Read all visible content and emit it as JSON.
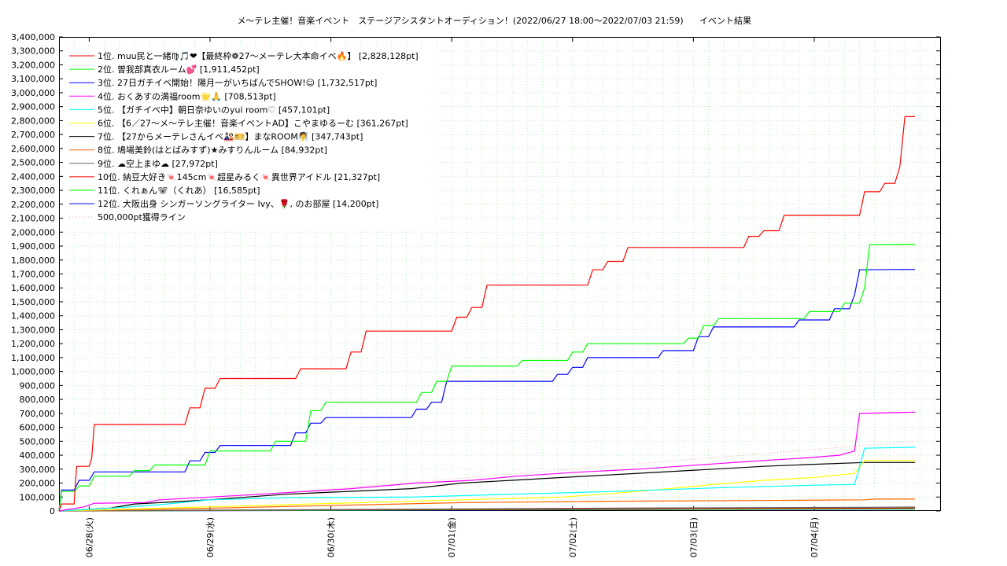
{
  "chart_data": {
    "type": "line",
    "title": "メ〜テレ主催！音楽イベント　ステージアシスタントオーディション！(2022/06/27 18:00〜2022/07/03 21:59)",
    "title_suffix": "イベント結果",
    "ylim": [
      0,
      3400000
    ],
    "y_ticks": [
      "0",
      "100,000",
      "200,000",
      "300,000",
      "400,000",
      "500,000",
      "600,000",
      "700,000",
      "800,000",
      "900,000",
      "1,000,000",
      "1,100,000",
      "1,200,000",
      "1,300,000",
      "1,400,000",
      "1,500,000",
      "1,600,000",
      "1,700,000",
      "1,800,000",
      "1,900,000",
      "2,000,000",
      "2,100,000",
      "2,200,000",
      "2,300,000",
      "2,400,000",
      "2,500,000",
      "2,600,000",
      "2,700,000",
      "2,800,000",
      "2,900,000",
      "3,000,000",
      "3,100,000",
      "3,200,000",
      "3,300,000",
      "3,400,000"
    ],
    "x_range_hours": [
      0,
      175
    ],
    "x_ticks": [
      {
        "label": "06/28(火)",
        "hour": 6
      },
      {
        "label": "06/29(水)",
        "hour": 30
      },
      {
        "label": "06/30(木)",
        "hour": 54
      },
      {
        "label": "07/01(金)",
        "hour": 78
      },
      {
        "label": "07/02(土)",
        "hour": 102
      },
      {
        "label": "07/03(日)",
        "hour": 126
      },
      {
        "label": "07/04(月)",
        "hour": 150
      }
    ],
    "grid": true,
    "legend_position": "top-left",
    "series": [
      {
        "name": "1位. muu民と一緒♍🎵❤【最終枠❁27〜メーテレ大本命イベ🔥】 [2,828,128pt]",
        "color": "#ff0000",
        "points": [
          [
            0,
            0
          ],
          [
            0.5,
            50000
          ],
          [
            3,
            50000
          ],
          [
            3.5,
            320000
          ],
          [
            6,
            320000
          ],
          [
            6.5,
            380000
          ],
          [
            7,
            620000
          ],
          [
            25,
            620000
          ],
          [
            26,
            740000
          ],
          [
            28,
            740000
          ],
          [
            29,
            880000
          ],
          [
            31,
            880000
          ],
          [
            32,
            950000
          ],
          [
            47,
            950000
          ],
          [
            48,
            1020000
          ],
          [
            57,
            1020000
          ],
          [
            58,
            1140000
          ],
          [
            60,
            1140000
          ],
          [
            61,
            1290000
          ],
          [
            78,
            1290000
          ],
          [
            79,
            1390000
          ],
          [
            81,
            1390000
          ],
          [
            82,
            1460000
          ],
          [
            84,
            1460000
          ],
          [
            85,
            1620000
          ],
          [
            105,
            1620000
          ],
          [
            106,
            1730000
          ],
          [
            108,
            1730000
          ],
          [
            109,
            1790000
          ],
          [
            112,
            1790000
          ],
          [
            113,
            1890000
          ],
          [
            136,
            1890000
          ],
          [
            137,
            1970000
          ],
          [
            139,
            1970000
          ],
          [
            140,
            2010000
          ],
          [
            143,
            2010000
          ],
          [
            144,
            2120000
          ],
          [
            159,
            2120000
          ],
          [
            160,
            2290000
          ],
          [
            163,
            2290000
          ],
          [
            164,
            2350000
          ],
          [
            166,
            2350000
          ],
          [
            167,
            2470000
          ],
          [
            168,
            2828128
          ],
          [
            170,
            2828128
          ]
        ]
      },
      {
        "name": "2位. 曽我部真衣ルーム💕 [1,911,452pt]",
        "color": "#00ff00",
        "points": [
          [
            0,
            0
          ],
          [
            0.5,
            140000
          ],
          [
            3,
            140000
          ],
          [
            4,
            180000
          ],
          [
            6,
            180000
          ],
          [
            7,
            250000
          ],
          [
            14,
            250000
          ],
          [
            15,
            290000
          ],
          [
            18,
            290000
          ],
          [
            19,
            330000
          ],
          [
            29,
            330000
          ],
          [
            30,
            430000
          ],
          [
            42,
            430000
          ],
          [
            43,
            500000
          ],
          [
            49,
            500000
          ],
          [
            50,
            720000
          ],
          [
            52,
            720000
          ],
          [
            53,
            780000
          ],
          [
            71,
            780000
          ],
          [
            72,
            850000
          ],
          [
            74,
            850000
          ],
          [
            75,
            930000
          ],
          [
            77,
            930000
          ],
          [
            78,
            1040000
          ],
          [
            91,
            1040000
          ],
          [
            92,
            1080000
          ],
          [
            101,
            1080000
          ],
          [
            102,
            1140000
          ],
          [
            104,
            1140000
          ],
          [
            105,
            1200000
          ],
          [
            124,
            1200000
          ],
          [
            125,
            1240000
          ],
          [
            127,
            1240000
          ],
          [
            128,
            1330000
          ],
          [
            130,
            1330000
          ],
          [
            131,
            1380000
          ],
          [
            148,
            1380000
          ],
          [
            149,
            1430000
          ],
          [
            155,
            1430000
          ],
          [
            156,
            1490000
          ],
          [
            159,
            1490000
          ],
          [
            160,
            1600000
          ],
          [
            161,
            1910000
          ],
          [
            170,
            1911452
          ]
        ]
      },
      {
        "name": "3位. 27日ガチイベ開始！陽月一がいちばんでSHOW!☺ [1,732,517pt]",
        "color": "#0000ff",
        "points": [
          [
            0,
            0
          ],
          [
            0.5,
            150000
          ],
          [
            3,
            150000
          ],
          [
            4,
            220000
          ],
          [
            6,
            220000
          ],
          [
            7,
            280000
          ],
          [
            25,
            280000
          ],
          [
            26,
            360000
          ],
          [
            28,
            360000
          ],
          [
            29,
            420000
          ],
          [
            31,
            420000
          ],
          [
            32,
            470000
          ],
          [
            46,
            470000
          ],
          [
            47,
            560000
          ],
          [
            49,
            560000
          ],
          [
            50,
            630000
          ],
          [
            52,
            630000
          ],
          [
            53,
            670000
          ],
          [
            70,
            670000
          ],
          [
            71,
            730000
          ],
          [
            73,
            730000
          ],
          [
            74,
            780000
          ],
          [
            76,
            780000
          ],
          [
            77,
            930000
          ],
          [
            98,
            930000
          ],
          [
            99,
            980000
          ],
          [
            101,
            980000
          ],
          [
            102,
            1030000
          ],
          [
            104,
            1030000
          ],
          [
            105,
            1100000
          ],
          [
            119,
            1100000
          ],
          [
            120,
            1150000
          ],
          [
            126,
            1150000
          ],
          [
            127,
            1250000
          ],
          [
            129,
            1250000
          ],
          [
            130,
            1320000
          ],
          [
            146,
            1320000
          ],
          [
            147,
            1370000
          ],
          [
            153,
            1370000
          ],
          [
            154,
            1450000
          ],
          [
            157,
            1450000
          ],
          [
            158,
            1550000
          ],
          [
            159,
            1730000
          ],
          [
            170,
            1732517
          ]
        ]
      },
      {
        "name": "4位. おくあすの満福room🌟🙏 [708,513pt]",
        "color": "#ff00ff",
        "points": [
          [
            0,
            0
          ],
          [
            5,
            30000
          ],
          [
            7,
            55000
          ],
          [
            17,
            60000
          ],
          [
            20,
            80000
          ],
          [
            30,
            100000
          ],
          [
            40,
            120000
          ],
          [
            58,
            160000
          ],
          [
            71,
            200000
          ],
          [
            82,
            220000
          ],
          [
            91,
            250000
          ],
          [
            104,
            280000
          ],
          [
            115,
            300000
          ],
          [
            131,
            340000
          ],
          [
            135,
            350000
          ],
          [
            148,
            380000
          ],
          [
            155,
            400000
          ],
          [
            158,
            430000
          ],
          [
            159,
            700000
          ],
          [
            170,
            708513
          ]
        ]
      },
      {
        "name": "5位. 【ガチイベ中】朝日奈ゆいのyui room♡ [457,101pt]",
        "color": "#00ffff",
        "points": [
          [
            0,
            0
          ],
          [
            10,
            20000
          ],
          [
            20,
            45000
          ],
          [
            30,
            80000
          ],
          [
            45,
            95000
          ],
          [
            70,
            100000
          ],
          [
            90,
            120000
          ],
          [
            110,
            140000
          ],
          [
            130,
            165000
          ],
          [
            150,
            185000
          ],
          [
            158,
            190000
          ],
          [
            160,
            450000
          ],
          [
            170,
            457101
          ]
        ]
      },
      {
        "name": "6位. 【6／27〜メ〜テレ主催！音楽イベントAD】こやまゆるーむ [361,267pt]",
        "color": "#ffff00",
        "points": [
          [
            0,
            0
          ],
          [
            20,
            20000
          ],
          [
            40,
            40000
          ],
          [
            60,
            60000
          ],
          [
            80,
            80000
          ],
          [
            100,
            100000
          ],
          [
            115,
            140000
          ],
          [
            130,
            190000
          ],
          [
            140,
            220000
          ],
          [
            150,
            240000
          ],
          [
            158,
            270000
          ],
          [
            160,
            361267
          ],
          [
            170,
            361267
          ]
        ]
      },
      {
        "name": "7位. 【27からメーテレさんイベ🎎🎫】まなROOM🧖 [347,743pt]",
        "color": "#000000",
        "points": [
          [
            0,
            0
          ],
          [
            10,
            20000
          ],
          [
            15,
            50000
          ],
          [
            30,
            80000
          ],
          [
            45,
            120000
          ],
          [
            70,
            160000
          ],
          [
            80,
            200000
          ],
          [
            90,
            220000
          ],
          [
            100,
            240000
          ],
          [
            115,
            270000
          ],
          [
            130,
            300000
          ],
          [
            140,
            320000
          ],
          [
            150,
            335000
          ],
          [
            160,
            347743
          ],
          [
            170,
            347743
          ]
        ]
      },
      {
        "name": "8位. 鳩場美鈴(はとばみすず)★みすりんルーム [84,932pt]",
        "color": "#ff6600",
        "points": [
          [
            0,
            0
          ],
          [
            30,
            20000
          ],
          [
            55,
            40000
          ],
          [
            80,
            60000
          ],
          [
            110,
            70000
          ],
          [
            140,
            75000
          ],
          [
            160,
            80000
          ],
          [
            162,
            84932
          ],
          [
            170,
            84932
          ]
        ]
      },
      {
        "name": "9位. ☁空上まゆ☁ [27,972pt]",
        "color": "#666666",
        "points": [
          [
            0,
            0
          ],
          [
            40,
            8000
          ],
          [
            80,
            15000
          ],
          [
            120,
            22000
          ],
          [
            160,
            26000
          ],
          [
            170,
            27972
          ]
        ]
      },
      {
        "name": "10位. 納豆大好き🍬145cm🍬超星みるく🍬異世界アイドル [21,327pt]",
        "color": "#ff0000",
        "points": [
          [
            0,
            0
          ],
          [
            40,
            6000
          ],
          [
            80,
            12000
          ],
          [
            120,
            17000
          ],
          [
            160,
            20000
          ],
          [
            170,
            21327
          ]
        ]
      },
      {
        "name": "11位. くれぁん🐨（くれあ） [16,585pt]",
        "color": "#00ff00",
        "points": [
          [
            0,
            0
          ],
          [
            40,
            4000
          ],
          [
            80,
            9000
          ],
          [
            120,
            13000
          ],
          [
            160,
            15500
          ],
          [
            170,
            16585
          ]
        ]
      },
      {
        "name": "12位. 大阪出身 シンガーソングライター Ivy、🌹, のお部屋 [14,200pt]",
        "color": "#0000ff",
        "points": [
          [
            0,
            0
          ],
          [
            40,
            3000
          ],
          [
            80,
            7000
          ],
          [
            120,
            11000
          ],
          [
            160,
            13500
          ],
          [
            170,
            14200
          ]
        ]
      }
    ],
    "target_line": {
      "name": "500,000pt獲得ライン",
      "color": "#ff9999",
      "points": [
        [
          0,
          0
        ],
        [
          170,
          500000
        ]
      ]
    }
  }
}
